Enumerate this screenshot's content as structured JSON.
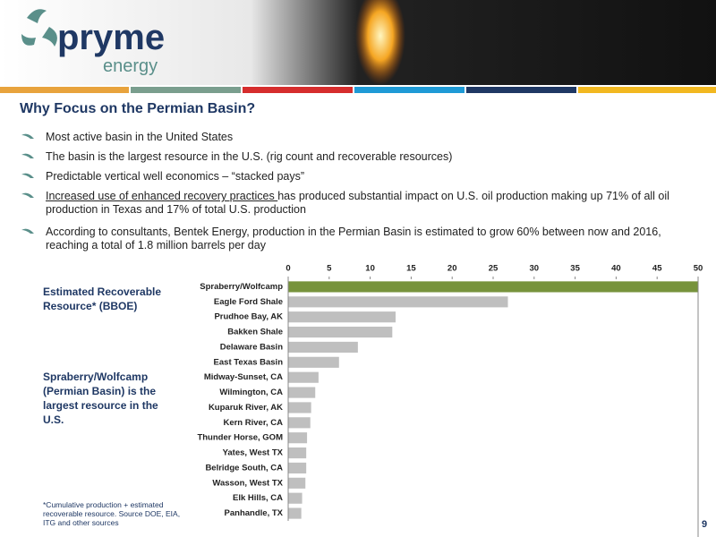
{
  "header": {
    "logo_main": "pryme",
    "logo_sub": "energy"
  },
  "title": "Why Focus on the Permian Basin?",
  "bullets": [
    {
      "text": "Most active basin in the United States"
    },
    {
      "text": "The basin is the largest resource in the U.S. (rig count and recoverable resources)"
    },
    {
      "text": "Predictable vertical well economics – “stacked pays”"
    },
    {
      "underlined": "Increased use of enhanced recovery practices ",
      "text": "has produced substantial impact on U.S. oil production making up 71% of all oil production in Texas and 17% of total U.S. production"
    },
    {
      "text": "According to consultants, Bentek Energy, production in the Permian Basin is estimated to grow 60% between now and 2016, reaching a total of 1.8 million barrels per day"
    }
  ],
  "side_notes": [
    "Estimated Recoverable Resource* (BBOE)",
    "Spraberry/Wolfcamp (Permian Basin) is the largest resource in the U.S."
  ],
  "footnote": "*Cumulative production + estimated recoverable resource. Source DOE, EIA, ITG and other sources",
  "page_number": "9",
  "chart_data": {
    "type": "hbar",
    "categories": [
      "Spraberry/Wolfcamp",
      "Eagle Ford Shale",
      "Prudhoe Bay, AK",
      "Bakken Shale",
      "Delaware Basin",
      "East Texas Basin",
      "Midway-Sunset, CA",
      "Wilmington, CA",
      "Kuparuk River, AK",
      "Kern River, CA",
      "Thunder Horse, GOM",
      "Yates, West TX",
      "Belridge South, CA",
      "Wasson, West TX",
      "Elk Hills, CA",
      "Panhandle, TX"
    ],
    "values": [
      50,
      26.8,
      13.1,
      12.7,
      8.5,
      6.2,
      3.7,
      3.3,
      2.8,
      2.7,
      2.3,
      2.2,
      2.2,
      2.1,
      1.7,
      1.6
    ],
    "colors": [
      "#77933c",
      "#bfbfbf",
      "#bfbfbf",
      "#bfbfbf",
      "#bfbfbf",
      "#bfbfbf",
      "#bfbfbf",
      "#bfbfbf",
      "#bfbfbf",
      "#bfbfbf",
      "#bfbfbf",
      "#bfbfbf",
      "#bfbfbf",
      "#bfbfbf",
      "#bfbfbf",
      "#bfbfbf"
    ],
    "xlim": [
      0,
      50
    ],
    "xticks": [
      0,
      5,
      10,
      15,
      20,
      25,
      30,
      35,
      40,
      45,
      50
    ],
    "grid": false
  }
}
